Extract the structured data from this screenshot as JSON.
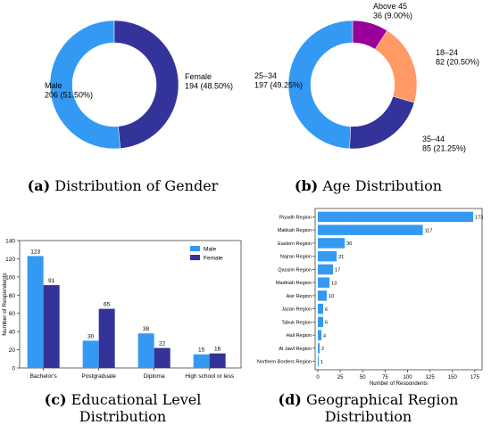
{
  "chart_data": [
    {
      "type": "pie",
      "subtype": "donut",
      "categories": [
        "Male",
        "Female"
      ],
      "values": [
        206,
        194
      ],
      "labels": [
        "Male\n206 (51.50%)",
        "Female\n194 (48.50%)"
      ],
      "colors": [
        "#3399f3",
        "#333399"
      ],
      "caption_tag": "(a)",
      "caption": "Distribution of Gender"
    },
    {
      "type": "pie",
      "subtype": "donut",
      "categories": [
        "25–34",
        "35–44",
        "18–24",
        "Above 45"
      ],
      "values": [
        197,
        85,
        82,
        36
      ],
      "labels": [
        "25–34\n197 (49.25%)",
        "35–44\n85 (21.25%)",
        "18–24\n82 (20.50%)",
        "Above 45\n36 (9.00%)"
      ],
      "colors": [
        "#3399f3",
        "#333399",
        "#ff9966",
        "#990099"
      ],
      "caption_tag": "(b)",
      "caption": "Age Distribution"
    },
    {
      "type": "bar",
      "categories": [
        "Bachelor's",
        "Postgraduate",
        "Diploma",
        "High school or less"
      ],
      "series": [
        {
          "name": "Male",
          "values": [
            123,
            30,
            38,
            15
          ],
          "color": "#3399f3"
        },
        {
          "name": "Female",
          "values": [
            91,
            65,
            22,
            16
          ],
          "color": "#333399"
        }
      ],
      "ylabel": "Number of Respondents",
      "ylim": [
        0,
        140
      ],
      "yticks": [
        0,
        20,
        40,
        60,
        80,
        100,
        120,
        140
      ],
      "legend": "top-right",
      "caption_tag": "(c)",
      "caption": "Educational Level Distribution"
    },
    {
      "type": "bar",
      "orientation": "horizontal",
      "categories": [
        "Riyadh Region",
        "Makkah Region",
        "Eastern Region",
        "Najran Region",
        "Qassim Region",
        "Madinah Region",
        "Asir Region",
        "Jazan Region",
        "Tabuk Region",
        "Hail Region",
        "Al Jawf Region",
        "Northern Borders Region"
      ],
      "values": [
        173,
        117,
        30,
        21,
        17,
        13,
        10,
        6,
        6,
        4,
        2,
        1
      ],
      "color": "#3399f3",
      "xlabel": "Number of Respondents",
      "xlim": [
        0,
        180
      ],
      "xticks": [
        0,
        25,
        50,
        75,
        100,
        125,
        150,
        175
      ],
      "caption_tag": "(d)",
      "caption": "Geographical Region Distribution"
    }
  ]
}
